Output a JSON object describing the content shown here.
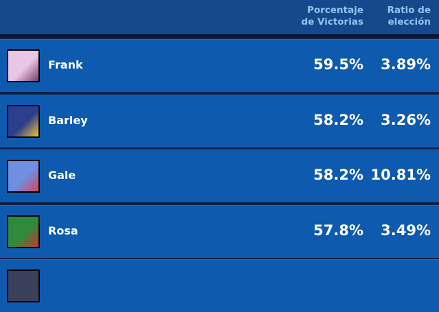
{
  "table": {
    "header": [
      [
        "Porcentaje",
        "de Victorias"
      ],
      [
        "Ratio de",
        "elección"
      ]
    ],
    "rows": [
      [
        "Frank",
        "59.5%",
        "3.89%"
      ],
      [
        "Barley",
        "58.2%",
        "3.26%"
      ],
      [
        "Gale",
        "58.2%",
        "10.81%"
      ],
      [
        "Rosa",
        "57.8%",
        "3.49%"
      ]
    ]
  }
}
